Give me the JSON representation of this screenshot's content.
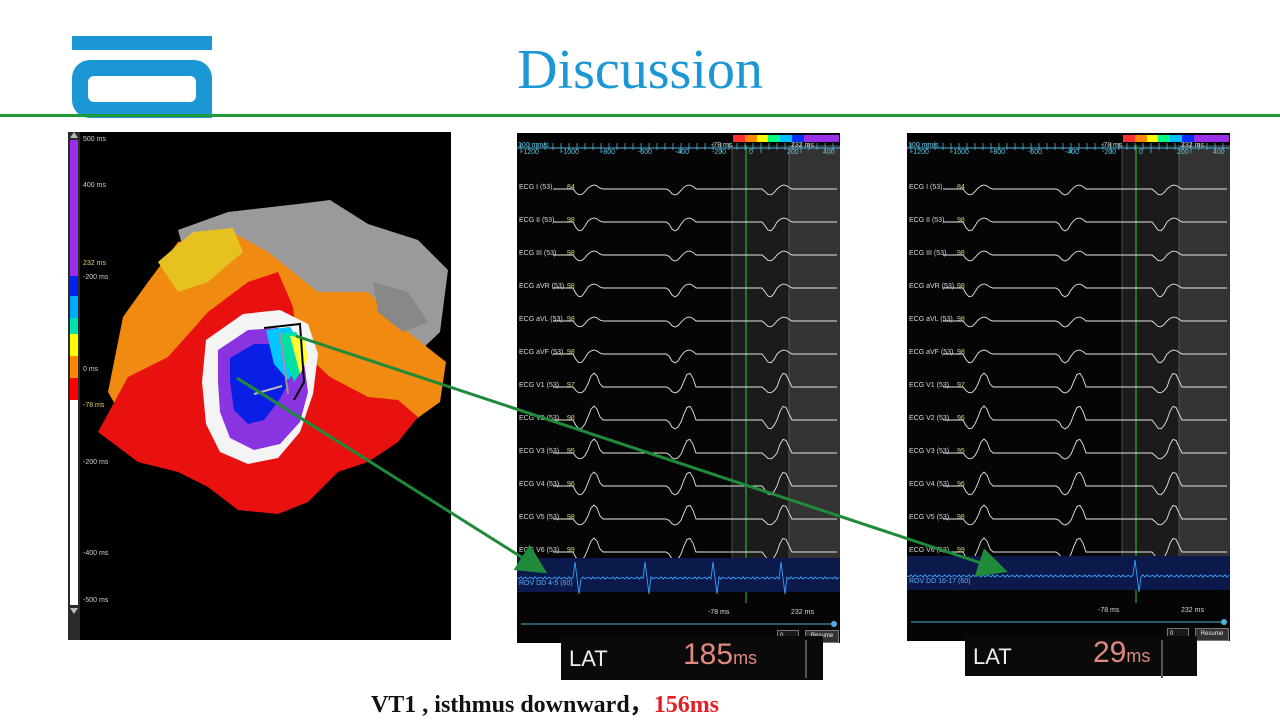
{
  "slide": {
    "title": "Discussion",
    "caption_prefix": "VT1 , isthmus downward，",
    "caption_highlight": "156ms",
    "brand_color": "#1a97d4",
    "rule_color": "#1f9a3a",
    "highlight_color": "#e41e26"
  },
  "map": {
    "scale_labels": [
      "500 ms",
      "400 ms",
      "232 ms",
      "-200 ms",
      "0 ms",
      "-78 ms",
      "-200 ms",
      "-400 ms",
      "-500 ms"
    ],
    "palette": [
      "#8e2be2",
      "#0022ee",
      "#00aaff",
      "#00e0b0",
      "#ffff00",
      "#ff8800",
      "#ff0000",
      "#ffffff"
    ]
  },
  "ecg_panels": [
    {
      "speed": "100 mm/s",
      "tick_labels": [
        "-1200",
        "-1000",
        "-800",
        "-600",
        "-400",
        "-200",
        "0",
        "200",
        "400"
      ],
      "window_start": "-78 ms",
      "window_end": "232 ms",
      "leads": [
        {
          "name": "ECG I (53)",
          "value": "84"
        },
        {
          "name": "ECG II (53)",
          "value": "98"
        },
        {
          "name": "ECG III (53)",
          "value": "98"
        },
        {
          "name": "ECG aVR (53)",
          "value": "98"
        },
        {
          "name": "ECG aVL (53)",
          "value": "98"
        },
        {
          "name": "ECG aVF (53)",
          "value": "98"
        },
        {
          "name": "ECG V1 (53)",
          "value": "97"
        },
        {
          "name": "ECG V2 (53)",
          "value": "98"
        },
        {
          "name": "ECG V3 (53)",
          "value": "95"
        },
        {
          "name": "ECG V4 (53)",
          "value": "96"
        },
        {
          "name": "ECG V5 (53)",
          "value": "98"
        },
        {
          "name": "ECG V6 (53)",
          "value": "99"
        }
      ],
      "rov": "ROV DD   4-5 (60)",
      "dropdown": "0",
      "resume": "Resume",
      "lat_label": "LAT",
      "lat_value": "185",
      "lat_unit": "ms"
    },
    {
      "speed": "100 mm/s",
      "tick_labels": [
        "-1200",
        "-1000",
        "-800",
        "-600",
        "-400",
        "-200",
        "0",
        "200",
        "400"
      ],
      "window_start": "-78 ms",
      "window_end": "232 ms",
      "leads": [
        {
          "name": "ECG I (53)",
          "value": "84"
        },
        {
          "name": "ECG II (53)",
          "value": "98"
        },
        {
          "name": "ECG III (53)",
          "value": "98"
        },
        {
          "name": "ECG aVR (53)",
          "value": "98"
        },
        {
          "name": "ECG aVL (53)",
          "value": "98"
        },
        {
          "name": "ECG aVF (53)",
          "value": "98"
        },
        {
          "name": "ECG V1 (53)",
          "value": "97"
        },
        {
          "name": "ECG V2 (53)",
          "value": "96"
        },
        {
          "name": "ECG V3 (53)",
          "value": "95"
        },
        {
          "name": "ECG V4 (53)",
          "value": "96"
        },
        {
          "name": "ECG V5 (53)",
          "value": "98"
        },
        {
          "name": "ECG V6 (53)",
          "value": "99"
        }
      ],
      "rov": "ROV DD   16-17 (60)",
      "dropdown": "0",
      "resume": "Resume",
      "lat_label": "LAT",
      "lat_value": "29",
      "lat_unit": "ms"
    }
  ]
}
